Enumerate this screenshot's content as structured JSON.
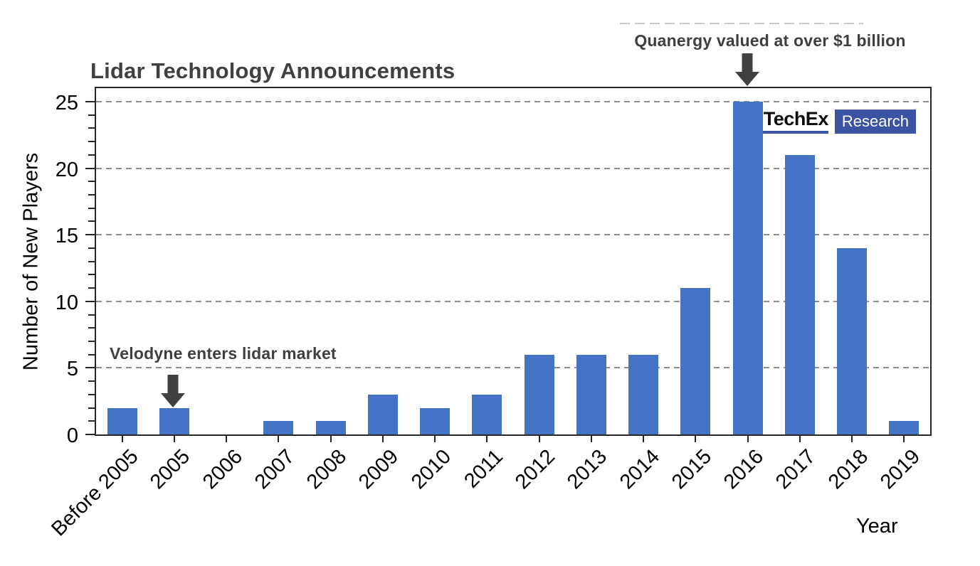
{
  "chart_data": {
    "type": "bar",
    "title": "Lidar Technology Announcements",
    "xlabel": "Year",
    "ylabel": "Number of New Players",
    "categories": [
      "Before 2005",
      "2005",
      "2006",
      "2007",
      "2008",
      "2009",
      "2010",
      "2011",
      "2012",
      "2013",
      "2014",
      "2015",
      "2016",
      "2017",
      "2018",
      "2019"
    ],
    "values": [
      2,
      2,
      0,
      1,
      1,
      3,
      2,
      3,
      6,
      6,
      6,
      11,
      25,
      21,
      14,
      1
    ],
    "ylim": [
      0,
      26
    ],
    "yticks": [
      0,
      5,
      10,
      15,
      20,
      25
    ],
    "minor_ytick_step": 1,
    "grid": "horizontal-dashed",
    "legend": "none",
    "bar_color": "#4472C4",
    "annotations": [
      {
        "text": "Velodyne enters lidar market",
        "target_category": "2005",
        "target_value": 2
      },
      {
        "text": "Quanergy valued at over $1 billion",
        "target_category": "2016",
        "target_value": 25
      }
    ]
  },
  "logo": {
    "brand": "IDTechEx",
    "suffix": "Research"
  },
  "colors": {
    "bar": "#4472C4",
    "title_text": "#404040",
    "annotation_text": "#3F3F3F",
    "axis": "#262626",
    "gridline": "#8C8C8C",
    "logo_blue": "#3A53A3"
  }
}
